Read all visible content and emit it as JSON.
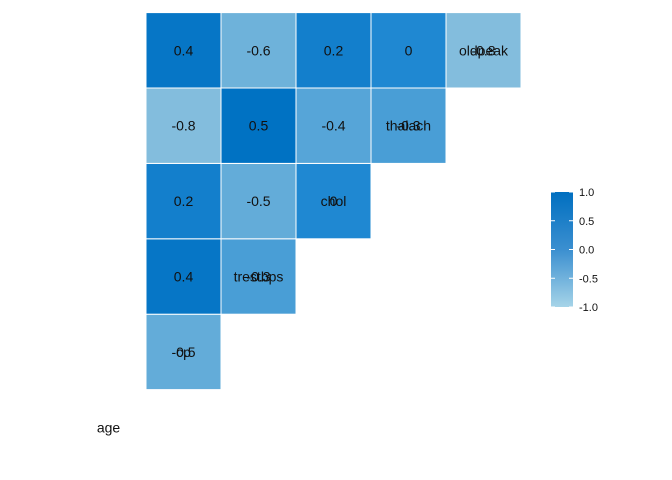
{
  "chart_data": {
    "type": "heatmap",
    "variables": [
      "age",
      "cp",
      "trestbps",
      "chol",
      "thalach",
      "oldpeak"
    ],
    "cells": [
      {
        "row": "cp",
        "col": "age",
        "value": -0.5,
        "label": "-0.5"
      },
      {
        "row": "trestbps",
        "col": "age",
        "value": 0.4,
        "label": "0.4"
      },
      {
        "row": "trestbps",
        "col": "cp",
        "value": -0.3,
        "label": "-0.3"
      },
      {
        "row": "chol",
        "col": "age",
        "value": 0.2,
        "label": "0.2"
      },
      {
        "row": "chol",
        "col": "cp",
        "value": -0.5,
        "label": "-0.5"
      },
      {
        "row": "chol",
        "col": "trestbps",
        "value": 0,
        "label": "0"
      },
      {
        "row": "thalach",
        "col": "age",
        "value": -0.8,
        "label": "-0.8"
      },
      {
        "row": "thalach",
        "col": "cp",
        "value": 0.5,
        "label": "0.5"
      },
      {
        "row": "thalach",
        "col": "trestbps",
        "value": -0.4,
        "label": "-0.4"
      },
      {
        "row": "thalach",
        "col": "chol",
        "value": -0.3,
        "label": "-0.3"
      },
      {
        "row": "oldpeak",
        "col": "age",
        "value": 0.4,
        "label": "0.4"
      },
      {
        "row": "oldpeak",
        "col": "cp",
        "value": -0.6,
        "label": "-0.6"
      },
      {
        "row": "oldpeak",
        "col": "trestbps",
        "value": 0.2,
        "label": "0.2"
      },
      {
        "row": "oldpeak",
        "col": "chol",
        "value": 0,
        "label": "0"
      },
      {
        "row": "oldpeak",
        "col": "thalach",
        "value": -0.8,
        "label": "-0.8"
      }
    ],
    "color_scale": {
      "low": "#9ecae1",
      "mid": "#3182bd",
      "high": "#0072bd",
      "range": [
        -1,
        1
      ]
    },
    "legend": {
      "position": "right",
      "ticks": [
        "1.0",
        "0.5",
        "0.0",
        "-0.5",
        "-1.0"
      ],
      "tick_values": [
        1,
        0.5,
        0,
        -0.5,
        -1
      ]
    },
    "grid": false
  }
}
